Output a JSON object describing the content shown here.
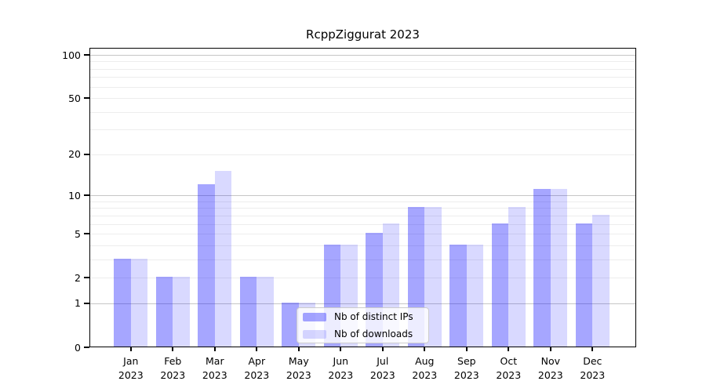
{
  "chart_data": {
    "type": "bar",
    "title": "RcppZiggurat 2023",
    "yscale": "log1p",
    "ylim": [
      0,
      100
    ],
    "grid": {
      "major": [
        1,
        10,
        100
      ],
      "minor": [
        2,
        3,
        4,
        5,
        6,
        7,
        8,
        9,
        20,
        30,
        40,
        50,
        60,
        70,
        80,
        90
      ]
    },
    "ytick_values": [
      0,
      1,
      2,
      5,
      10,
      20,
      50,
      100
    ],
    "ytick_labels": [
      "0",
      "1",
      "2",
      "5",
      "10",
      "20",
      "50",
      "100"
    ],
    "categories": [
      {
        "month": "Jan",
        "year": "2023"
      },
      {
        "month": "Feb",
        "year": "2023"
      },
      {
        "month": "Mar",
        "year": "2023"
      },
      {
        "month": "Apr",
        "year": "2023"
      },
      {
        "month": "May",
        "year": "2023"
      },
      {
        "month": "Jun",
        "year": "2023"
      },
      {
        "month": "Jul",
        "year": "2023"
      },
      {
        "month": "Aug",
        "year": "2023"
      },
      {
        "month": "Sep",
        "year": "2023"
      },
      {
        "month": "Oct",
        "year": "2023"
      },
      {
        "month": "Nov",
        "year": "2023"
      },
      {
        "month": "Dec",
        "year": "2023"
      }
    ],
    "series": [
      {
        "name": "Nb of distinct IPs",
        "color": "rgba(0,0,255,0.35)",
        "values": [
          3,
          2,
          12,
          2,
          1,
          4,
          5,
          8,
          4,
          6,
          11,
          6
        ]
      },
      {
        "name": "Nb of downloads",
        "color": "rgba(0,0,255,0.15)",
        "values": [
          3,
          2,
          15,
          2,
          1,
          4,
          6,
          8,
          4,
          8,
          11,
          7
        ]
      }
    ],
    "legend": {
      "position": "lower center",
      "entries": [
        "Nb of distinct IPs",
        "Nb of downloads"
      ]
    }
  }
}
